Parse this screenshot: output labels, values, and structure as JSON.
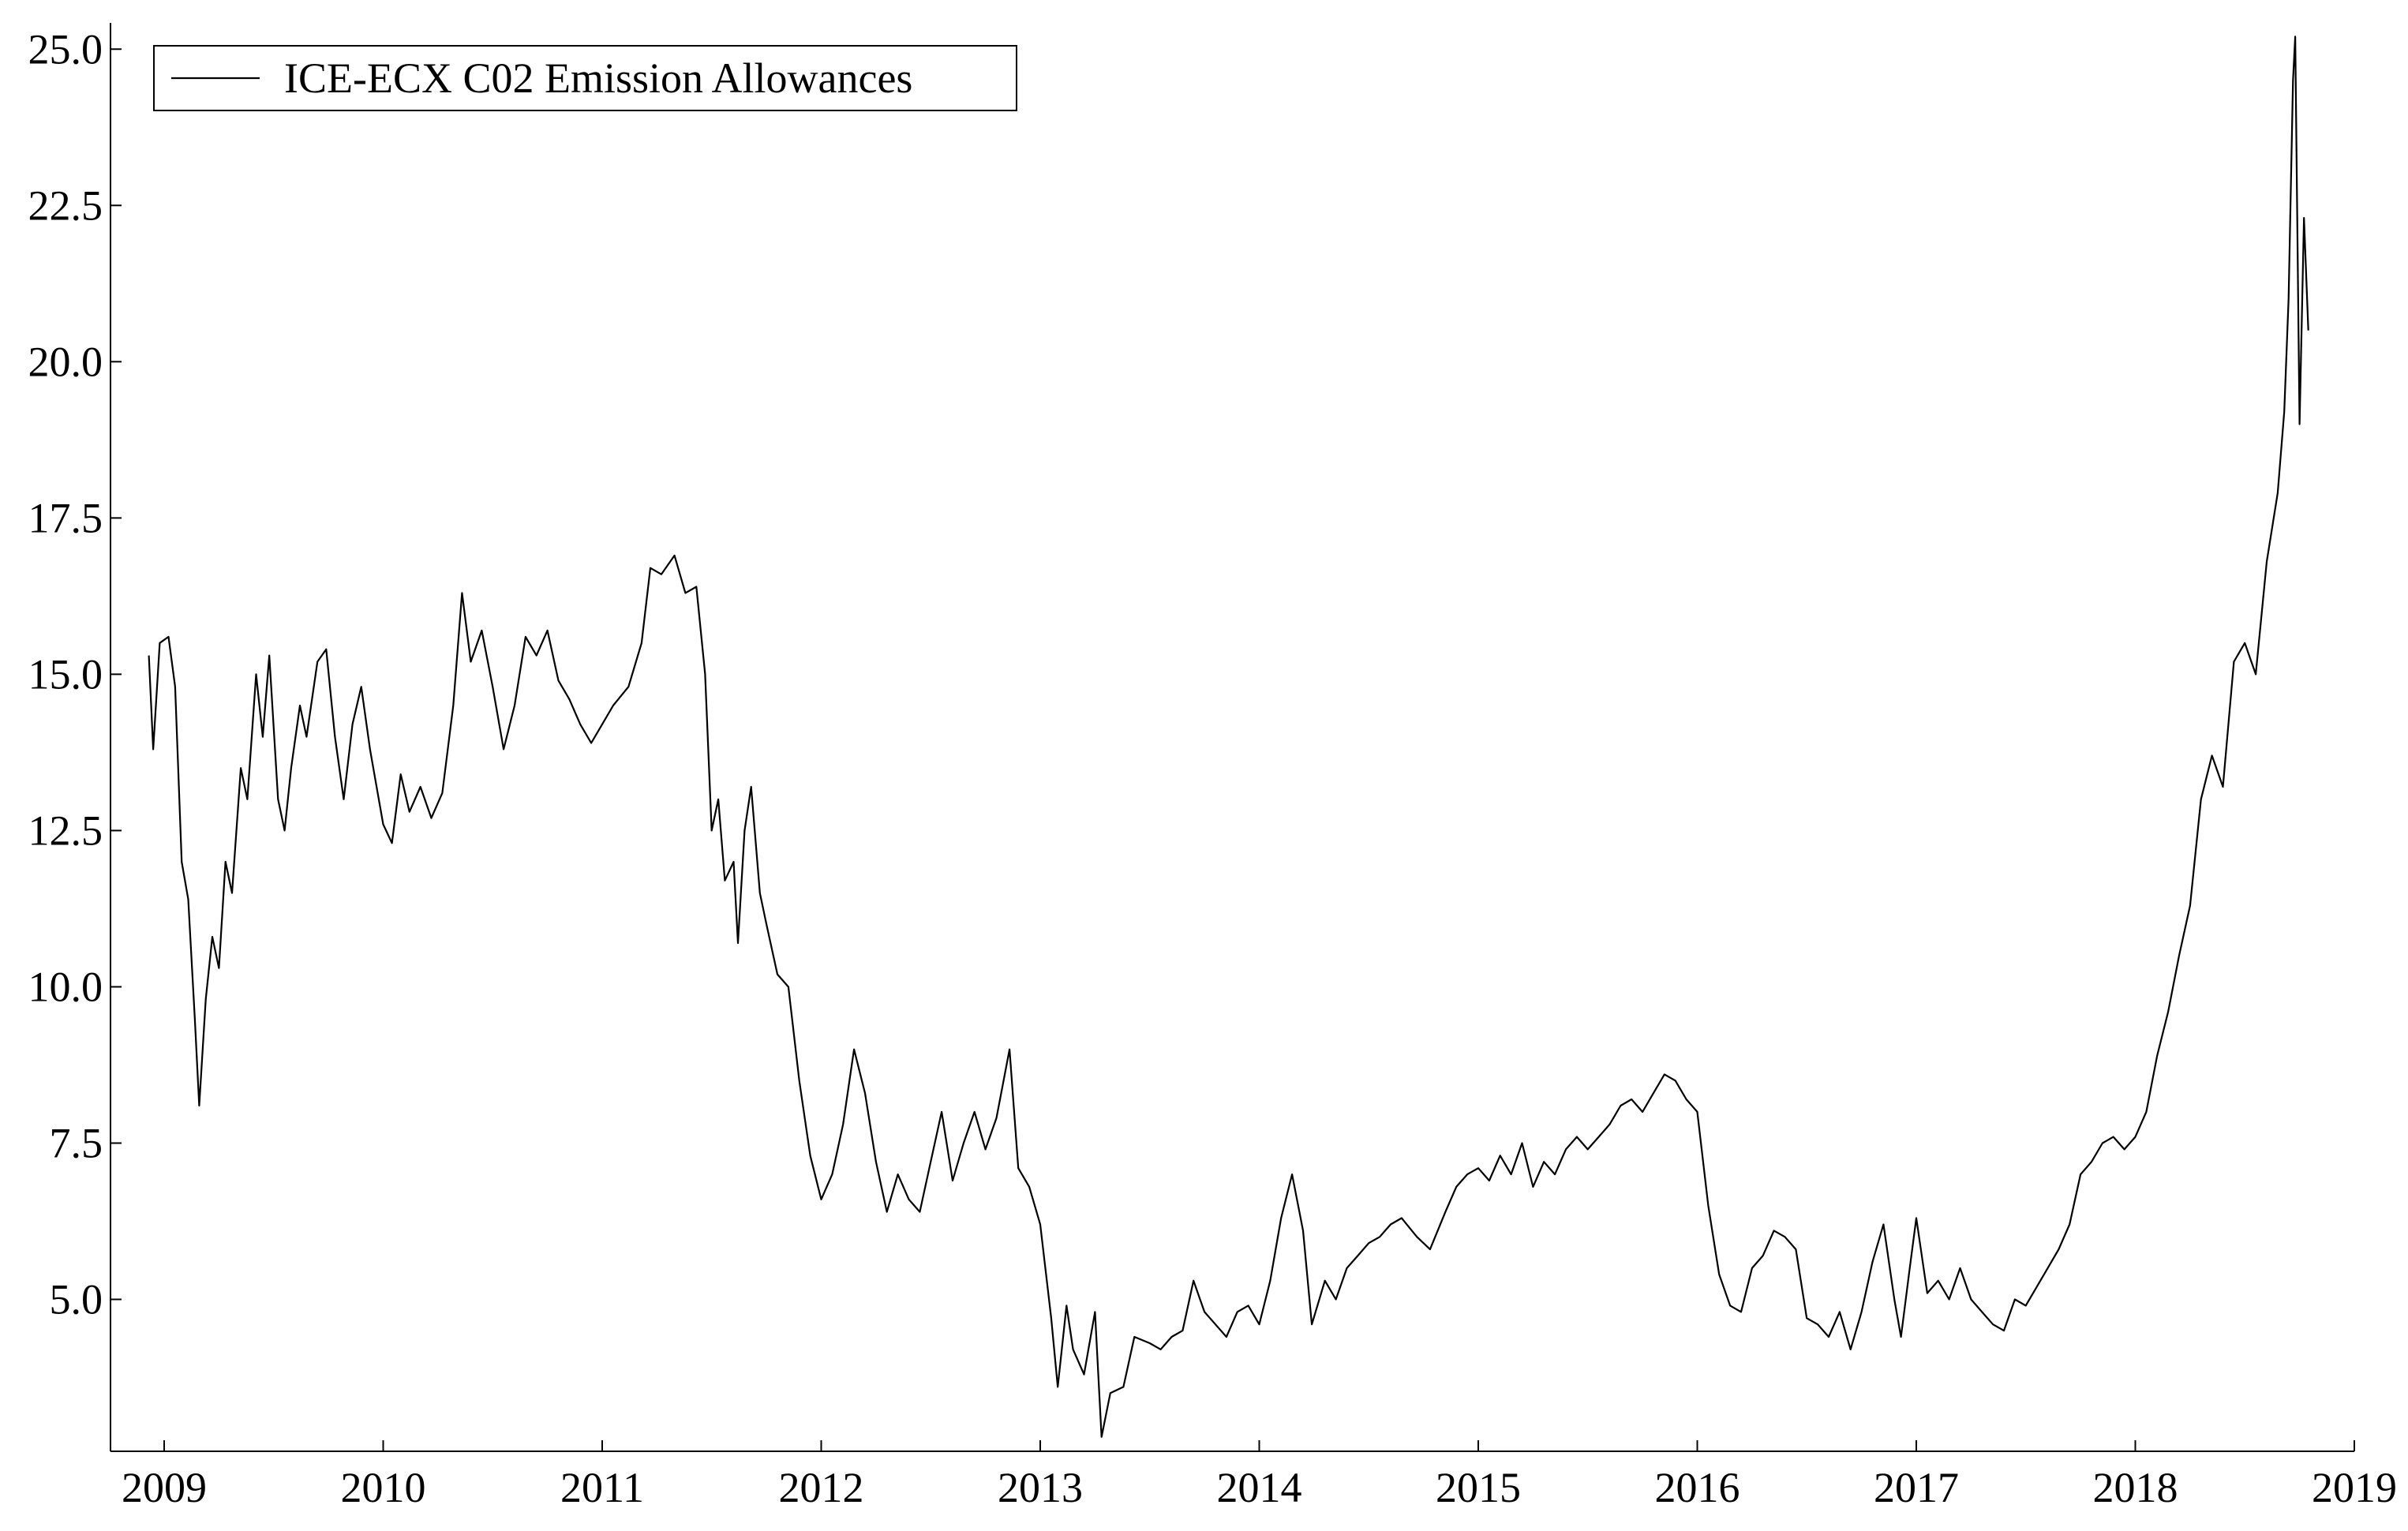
{
  "chart_data": {
    "type": "line",
    "x": [
      2008.93,
      2008.95,
      2008.98,
      2009.02,
      2009.05,
      2009.08,
      2009.11,
      2009.14,
      2009.16,
      2009.19,
      2009.22,
      2009.25,
      2009.28,
      2009.31,
      2009.35,
      2009.38,
      2009.42,
      2009.45,
      2009.48,
      2009.52,
      2009.55,
      2009.58,
      2009.62,
      2009.65,
      2009.7,
      2009.74,
      2009.78,
      2009.82,
      2009.86,
      2009.9,
      2009.94,
      2010.0,
      2010.04,
      2010.08,
      2010.12,
      2010.17,
      2010.22,
      2010.27,
      2010.32,
      2010.36,
      2010.4,
      2010.45,
      2010.5,
      2010.55,
      2010.6,
      2010.65,
      2010.7,
      2010.75,
      2010.8,
      2010.85,
      2010.9,
      2010.95,
      2011.0,
      2011.05,
      2011.12,
      2011.18,
      2011.22,
      2011.27,
      2011.33,
      2011.38,
      2011.43,
      2011.47,
      2011.5,
      2011.53,
      2011.56,
      2011.6,
      2011.62,
      2011.65,
      2011.68,
      2011.72,
      2011.75,
      2011.8,
      2011.85,
      2011.9,
      2011.95,
      2012.0,
      2012.05,
      2012.1,
      2012.15,
      2012.2,
      2012.25,
      2012.3,
      2012.35,
      2012.4,
      2012.45,
      2012.5,
      2012.55,
      2012.6,
      2012.65,
      2012.7,
      2012.75,
      2012.8,
      2012.86,
      2012.9,
      2012.95,
      2013.0,
      2013.05,
      2013.08,
      2013.12,
      2013.15,
      2013.2,
      2013.25,
      2013.28,
      2013.32,
      2013.38,
      2013.43,
      2013.5,
      2013.55,
      2013.6,
      2013.65,
      2013.7,
      2013.75,
      2013.8,
      2013.85,
      2013.9,
      2013.95,
      2014.0,
      2014.05,
      2014.1,
      2014.15,
      2014.2,
      2014.24,
      2014.3,
      2014.35,
      2014.4,
      2014.45,
      2014.5,
      2014.55,
      2014.6,
      2014.65,
      2014.72,
      2014.78,
      2014.85,
      2014.9,
      2014.95,
      2015.0,
      2015.05,
      2015.1,
      2015.15,
      2015.2,
      2015.25,
      2015.3,
      2015.35,
      2015.4,
      2015.45,
      2015.5,
      2015.55,
      2015.6,
      2015.65,
      2015.7,
      2015.75,
      2015.8,
      2015.85,
      2015.9,
      2015.95,
      2016.0,
      2016.05,
      2016.1,
      2016.15,
      2016.2,
      2016.25,
      2016.3,
      2016.35,
      2016.4,
      2016.45,
      2016.5,
      2016.55,
      2016.6,
      2016.65,
      2016.7,
      2016.75,
      2016.8,
      2016.85,
      2016.9,
      2016.93,
      2016.97,
      2017.0,
      2017.05,
      2017.1,
      2017.15,
      2017.2,
      2017.25,
      2017.3,
      2017.35,
      2017.4,
      2017.45,
      2017.5,
      2017.55,
      2017.6,
      2017.65,
      2017.7,
      2017.75,
      2017.8,
      2017.85,
      2017.9,
      2017.95,
      2018.0,
      2018.05,
      2018.1,
      2018.15,
      2018.2,
      2018.25,
      2018.3,
      2018.35,
      2018.4,
      2018.45,
      2018.5,
      2018.55,
      2018.6,
      2018.65,
      2018.68,
      2018.7,
      2018.72,
      2018.73,
      2018.75,
      2018.77,
      2018.79
    ],
    "series": [
      {
        "name": "ICE-ECX C02 Emission Allowances",
        "color": "#000000",
        "values": [
          15.3,
          13.8,
          15.5,
          15.6,
          14.8,
          12.0,
          11.4,
          9.5,
          8.1,
          9.8,
          10.8,
          10.3,
          12.0,
          11.5,
          13.5,
          13.0,
          15.0,
          14.0,
          15.3,
          13.0,
          12.5,
          13.5,
          14.5,
          14.0,
          15.2,
          15.4,
          14.0,
          13.0,
          14.2,
          14.8,
          13.8,
          12.6,
          12.3,
          13.4,
          12.8,
          13.2,
          12.7,
          13.1,
          14.5,
          16.3,
          15.2,
          15.7,
          14.8,
          13.8,
          14.5,
          15.6,
          15.3,
          15.7,
          14.9,
          14.6,
          14.2,
          13.9,
          14.2,
          14.5,
          14.8,
          15.5,
          16.7,
          16.6,
          16.9,
          16.3,
          16.4,
          15.0,
          12.5,
          13.0,
          11.7,
          12.0,
          10.7,
          12.5,
          13.2,
          11.5,
          11.0,
          10.2,
          10.0,
          8.5,
          7.3,
          6.6,
          7.0,
          7.8,
          9.0,
          8.3,
          7.2,
          6.4,
          7.0,
          6.6,
          6.4,
          7.2,
          8.0,
          6.9,
          7.5,
          8.0,
          7.4,
          7.9,
          9.0,
          7.1,
          6.8,
          6.2,
          4.7,
          3.6,
          4.9,
          4.2,
          3.8,
          4.8,
          2.8,
          3.5,
          3.6,
          4.4,
          4.3,
          4.2,
          4.4,
          4.5,
          5.3,
          4.8,
          4.6,
          4.4,
          4.8,
          4.9,
          4.6,
          5.3,
          6.3,
          7.0,
          6.1,
          4.6,
          5.3,
          5.0,
          5.5,
          5.7,
          5.9,
          6.0,
          6.2,
          6.3,
          6.0,
          5.8,
          6.4,
          6.8,
          7.0,
          7.1,
          6.9,
          7.3,
          7.0,
          7.5,
          6.8,
          7.2,
          7.0,
          7.4,
          7.6,
          7.4,
          7.6,
          7.8,
          8.1,
          8.2,
          8.0,
          8.3,
          8.6,
          8.5,
          8.2,
          8.0,
          6.5,
          5.4,
          4.9,
          4.8,
          5.5,
          5.7,
          6.1,
          6.0,
          5.8,
          4.7,
          4.6,
          4.4,
          4.8,
          4.2,
          4.8,
          5.6,
          6.2,
          5.0,
          4.4,
          5.5,
          6.3,
          5.1,
          5.3,
          5.0,
          5.5,
          5.0,
          4.8,
          4.6,
          4.5,
          5.0,
          4.9,
          5.2,
          5.5,
          5.8,
          6.2,
          7.0,
          7.2,
          7.5,
          7.6,
          7.4,
          7.6,
          8.0,
          8.9,
          9.6,
          10.5,
          11.3,
          13.0,
          13.7,
          13.2,
          15.2,
          15.5,
          15.0,
          16.8,
          17.9,
          19.2,
          21.0,
          24.5,
          25.2,
          19.0,
          22.3,
          20.5
        ]
      }
    ],
    "xlim": [
      2008.755,
      2019.0
    ],
    "xticks": [
      2009,
      2010,
      2011,
      2012,
      2013,
      2014,
      2015,
      2016,
      2017,
      2018,
      2019
    ],
    "ylim": [
      2.57,
      25.42
    ],
    "yticks": [
      {
        "value": 5,
        "label": "5.0"
      },
      7.5,
      {
        "value": 10,
        "label": "10.0"
      },
      12.5,
      {
        "value": 15,
        "label": "15.0"
      },
      17.5,
      {
        "value": 20,
        "label": "20.0"
      },
      22.5,
      {
        "value": 25,
        "label": "25.0"
      }
    ],
    "grid": false,
    "legend": "upper left"
  }
}
